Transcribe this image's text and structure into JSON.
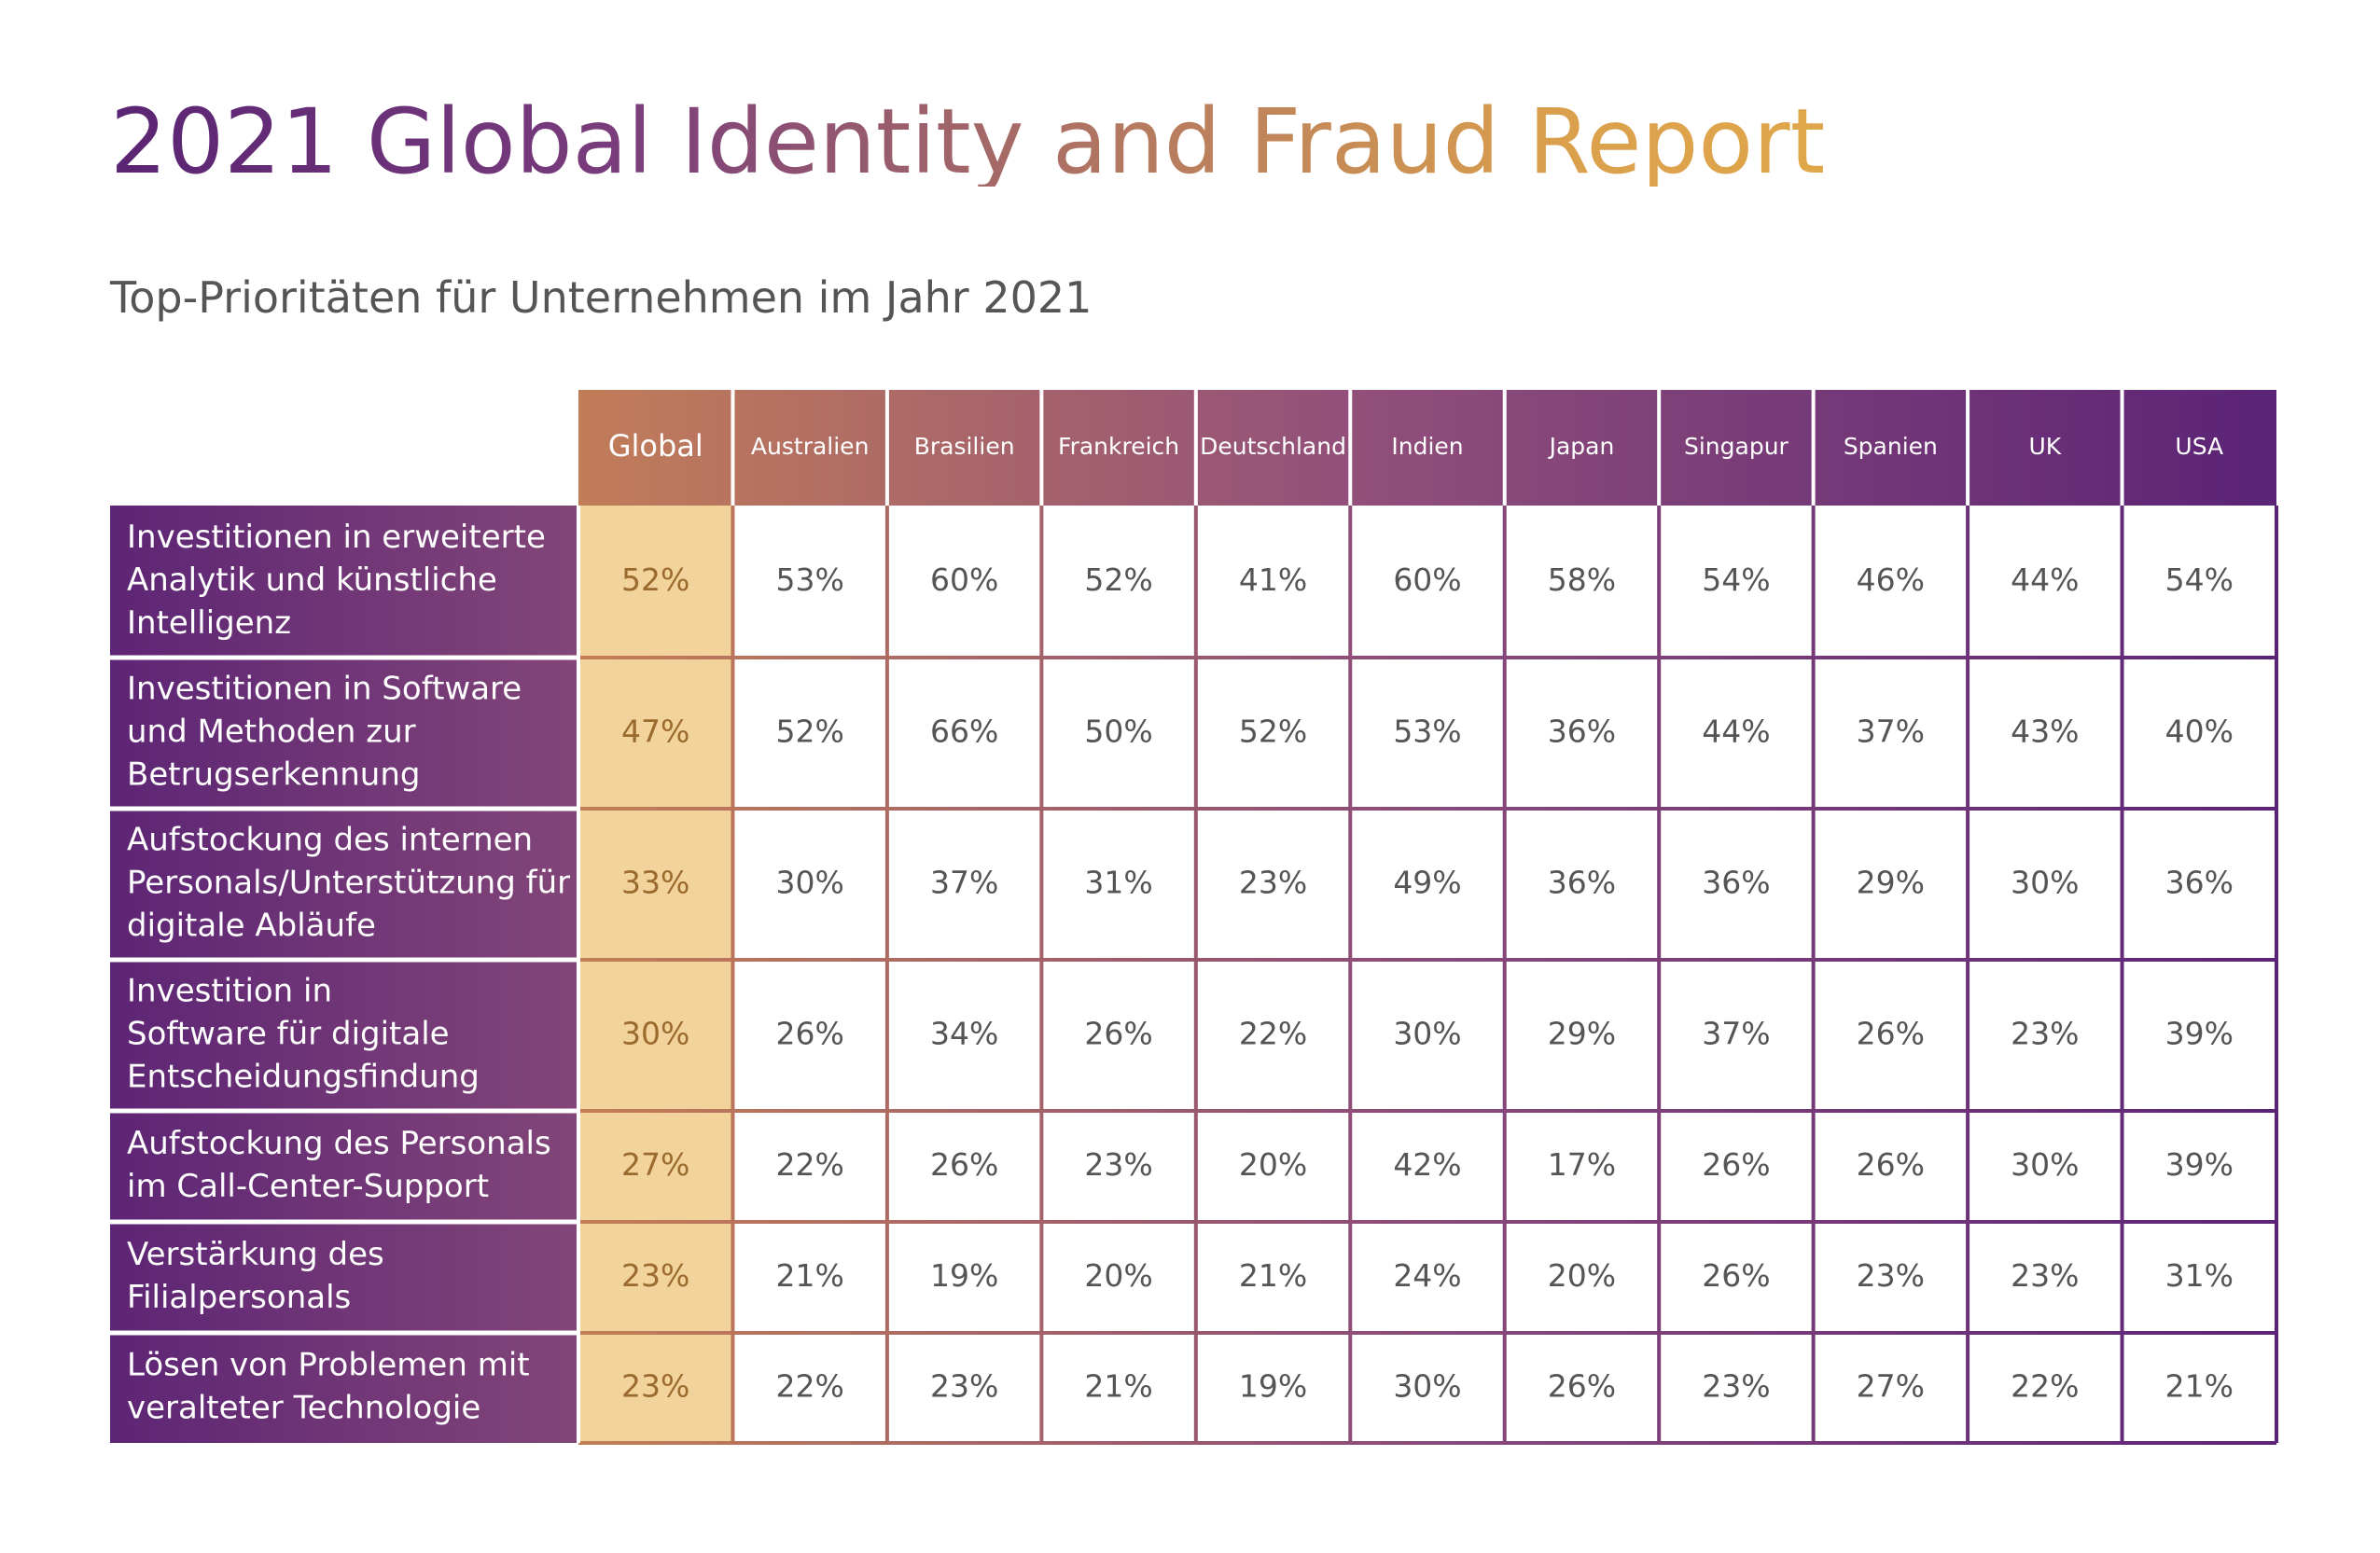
{
  "title": "2021 Global Identity and Fraud Report",
  "subtitle": "Top-Prioritäten für Unternehmen im Jahr 2021",
  "colors": {
    "purple_dark": "#5c2477",
    "purple_mid": "#7a3d7c",
    "orange": "#c47e55",
    "global_fill": "#f2d39b",
    "global_text": "#9a6a2e",
    "cell_text": "#555555"
  },
  "chart_data": {
    "type": "table",
    "columns": [
      "Global",
      "Australien",
      "Brasilien",
      "Frankreich",
      "Deutschland",
      "Indien",
      "Japan",
      "Singapur",
      "Spanien",
      "UK",
      "USA"
    ],
    "rows": [
      {
        "label": [
          "Investitionen in erweiterte",
          "Analytik und künstliche",
          "Intelligenz"
        ],
        "values": [
          "52%",
          "53%",
          "60%",
          "52%",
          "41%",
          "60%",
          "58%",
          "54%",
          "46%",
          "44%",
          "54%"
        ]
      },
      {
        "label": [
          "Investitionen in Software",
          "und Methoden zur",
          "Betrugserkennung"
        ],
        "values": [
          "47%",
          "52%",
          "66%",
          "50%",
          "52%",
          "53%",
          "36%",
          "44%",
          "37%",
          "43%",
          "40%"
        ]
      },
      {
        "label": [
          "Aufstockung des internen",
          "Personals/Unterstützung für",
          "digitale Abläufe"
        ],
        "values": [
          "33%",
          "30%",
          "37%",
          "31%",
          "23%",
          "49%",
          "36%",
          "36%",
          "29%",
          "30%",
          "36%"
        ]
      },
      {
        "label": [
          "Investition in",
          "Software für digitale",
          "Entscheidungsfindung"
        ],
        "values": [
          "30%",
          "26%",
          "34%",
          "26%",
          "22%",
          "30%",
          "29%",
          "37%",
          "26%",
          "23%",
          "39%"
        ]
      },
      {
        "label": [
          "Aufstockung des Personals",
          "im Call-Center-Support"
        ],
        "values": [
          "27%",
          "22%",
          "26%",
          "23%",
          "20%",
          "42%",
          "17%",
          "26%",
          "26%",
          "30%",
          "39%"
        ]
      },
      {
        "label": [
          "Verstärkung des",
          "Filialpersonals"
        ],
        "values": [
          "23%",
          "21%",
          "19%",
          "20%",
          "21%",
          "24%",
          "20%",
          "26%",
          "23%",
          "23%",
          "31%"
        ]
      },
      {
        "label": [
          "Lösen von Problemen mit",
          "veralteter Technologie"
        ],
        "values": [
          "23%",
          "22%",
          "23%",
          "21%",
          "19%",
          "30%",
          "26%",
          "23%",
          "27%",
          "22%",
          "21%"
        ]
      }
    ]
  }
}
